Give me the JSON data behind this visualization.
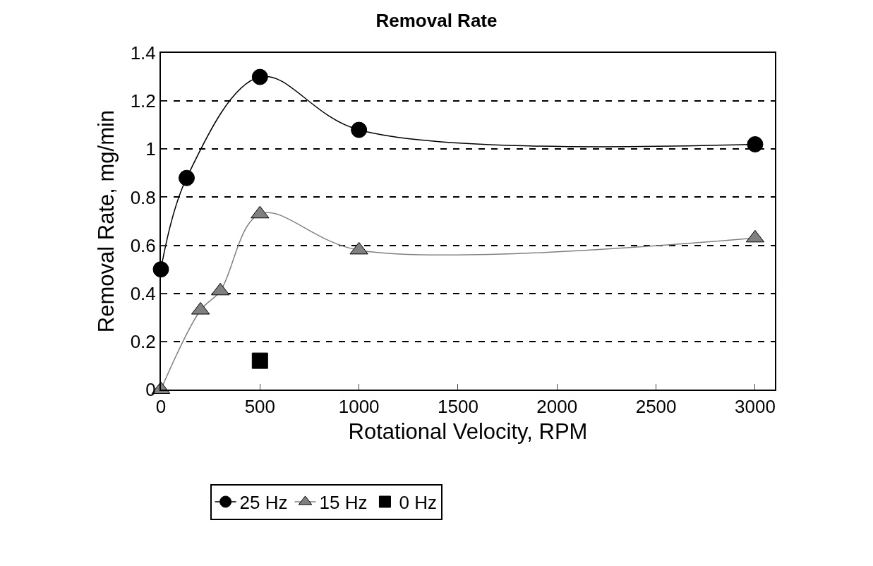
{
  "chart_data": {
    "type": "line",
    "title": "Removal Rate",
    "xlabel": "Rotational Velocity, RPM",
    "ylabel": "Removal Rate, mg/min",
    "series": [
      {
        "name": "25 Hz",
        "color": "#000000",
        "x": [
          0,
          130,
          500,
          1000,
          3000
        ],
        "values": [
          0.5,
          0.88,
          1.3,
          1.08,
          1.02
        ],
        "marker": "circle",
        "line_style": "solid"
      },
      {
        "name": "15 Hz",
        "color": "#808080",
        "x": [
          0,
          200,
          300,
          500,
          1000,
          3000
        ],
        "values": [
          0,
          0.33,
          0.41,
          0.73,
          0.58,
          0.63
        ],
        "marker": "triangle",
        "line_style": "solid"
      },
      {
        "name": "0 Hz",
        "type": "scatter",
        "color": "#000000",
        "x": [
          500
        ],
        "values": [
          0.12
        ],
        "marker": "square"
      }
    ],
    "xlim": [
      0,
      3100
    ],
    "xticks": [
      0,
      500,
      1000,
      1500,
      2000,
      2500,
      3000
    ],
    "ylim": [
      0,
      1.4
    ],
    "yticks": [
      0,
      0.2,
      0.4,
      0.6,
      0.8,
      1,
      1.2,
      1.4
    ],
    "grid": "y",
    "legend": "bottom"
  }
}
